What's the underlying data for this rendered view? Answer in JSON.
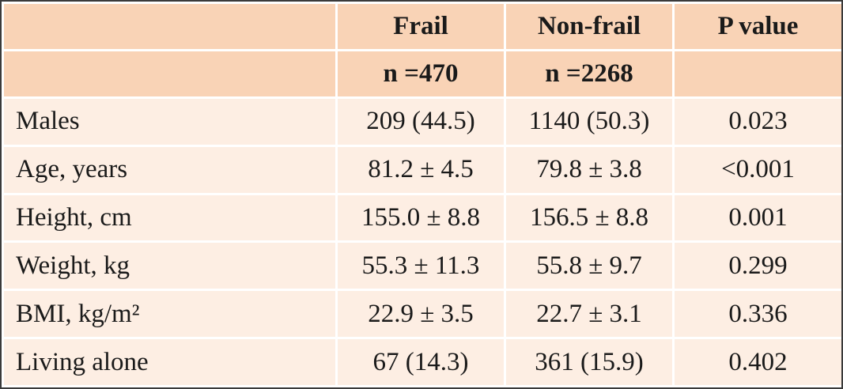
{
  "header": {
    "columns": [
      "",
      "Frail",
      "Non-frail",
      "P value"
    ],
    "subheader": [
      "",
      "n =470",
      "n =2268",
      ""
    ]
  },
  "rows": [
    {
      "label": "Males",
      "frail": "209 (44.5)",
      "nonfrail": "1140 (50.3)",
      "p": "0.023"
    },
    {
      "label": "Age, years",
      "frail": "81.2 ± 4.5",
      "nonfrail": "79.8 ± 3.8",
      "p": "<0.001"
    },
    {
      "label": "Height, cm",
      "frail": "155.0 ± 8.8",
      "nonfrail": "156.5 ± 8.8",
      "p": "0.001"
    },
    {
      "label": "Weight, kg",
      "frail": "55.3 ± 11.3",
      "nonfrail": "55.8 ± 9.7",
      "p": "0.299"
    },
    {
      "label": "BMI, kg/m²",
      "frail": "22.9 ± 3.5",
      "nonfrail": "22.7 ± 3.1",
      "p": "0.336"
    },
    {
      "label": "Living alone",
      "frail": "67 (14.3)",
      "nonfrail": "361 (15.9)",
      "p": "0.402"
    }
  ],
  "colors": {
    "header_bg": "#f9d3b6",
    "body_bg": "#fdeee3",
    "frame": "#3a3a3a"
  }
}
